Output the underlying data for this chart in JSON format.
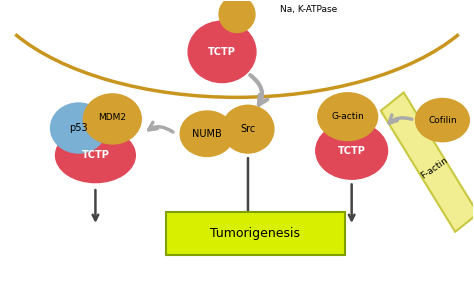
{
  "background_color": "#ffffff",
  "membrane_color": "#c8961e",
  "red_color": "#e04858",
  "gold_color": "#d4a030",
  "blue_color": "#7ab0d4",
  "green_box_color": "#d8f000",
  "f_actin_color": "#f0ee90",
  "f_actin_edge": "#c8c840",
  "arrow_gray": "#aaaaaa",
  "dark_arrow": "#444444",
  "labels": {
    "na_katpase": "Na, K-ATPase",
    "tctp_top": "TCTP",
    "src": "Src",
    "p53": "p53",
    "mdm2": "MDM2",
    "tctp_left": "TCTP",
    "numb": "NUMB",
    "g_actin": "G-actin",
    "tctp_right": "TCTP",
    "cofilin": "Cofilin",
    "f_actin": "F-actin",
    "tumorigenesis": "Tumorigenesis"
  }
}
